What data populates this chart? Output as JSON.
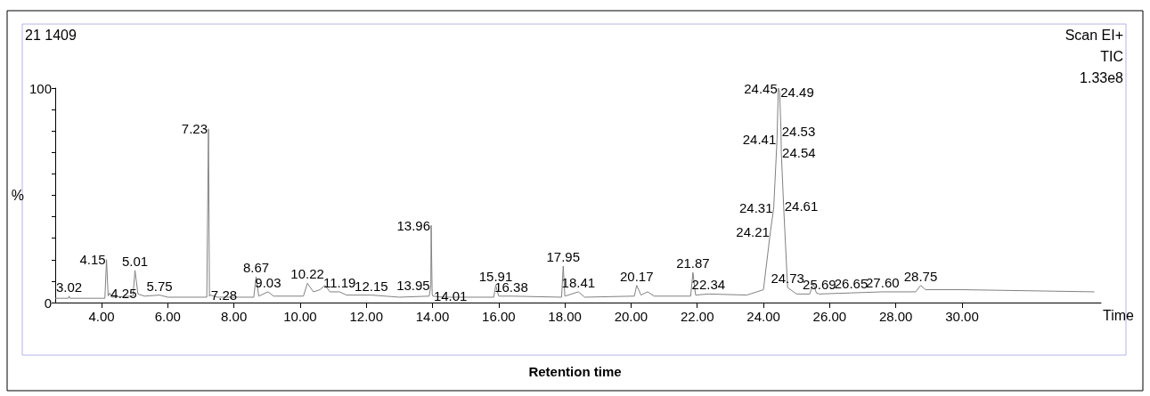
{
  "chart_data": {
    "type": "line",
    "xlabel": "Time",
    "ylabel": "%",
    "annotations": [
      "21 1409",
      "Scan EI+",
      "TIC",
      "1.33e8",
      "Retention time",
      {
        "text": "3.02",
        "x": 3.02,
        "y": 3
      },
      {
        "text": "4.15",
        "x": 4.15,
        "y": 20
      },
      {
        "text": "4.25",
        "x": 4.25,
        "y": 4.5
      },
      {
        "text": "5.01",
        "x": 5.01,
        "y": 15
      },
      {
        "text": "5.75",
        "x": 5.75,
        "y": 3.5
      },
      {
        "text": "7.23",
        "x": 7.23,
        "y": 81
      },
      {
        "text": "7.28",
        "x": 7.28,
        "y": 3.5
      },
      {
        "text": "8.67",
        "x": 8.67,
        "y": 12
      },
      {
        "text": "9.03",
        "x": 9.03,
        "y": 5
      },
      {
        "text": "10.22",
        "x": 10.22,
        "y": 9
      },
      {
        "text": "11.19",
        "x": 11.19,
        "y": 5
      },
      {
        "text": "12.15",
        "x": 12.15,
        "y": 3.5
      },
      {
        "text": "13.95",
        "x": 13.95,
        "y": 8
      },
      {
        "text": "13.96",
        "x": 13.96,
        "y": 36
      },
      {
        "text": "14.01",
        "x": 14.01,
        "y": 3
      },
      {
        "text": "15.91",
        "x": 15.91,
        "y": 8
      },
      {
        "text": "16.38",
        "x": 16.38,
        "y": 3
      },
      {
        "text": "17.95",
        "x": 17.95,
        "y": 17
      },
      {
        "text": "18.41",
        "x": 18.41,
        "y": 5
      },
      {
        "text": "20.17",
        "x": 20.17,
        "y": 8
      },
      {
        "text": "21.87",
        "x": 21.87,
        "y": 14
      },
      {
        "text": "22.34",
        "x": 22.34,
        "y": 4
      },
      {
        "text": "24.21",
        "x": 24.21,
        "y": 33
      },
      {
        "text": "24.31",
        "x": 24.31,
        "y": 44
      },
      {
        "text": "24.41",
        "x": 24.41,
        "y": 76
      },
      {
        "text": "24.45",
        "x": 24.45,
        "y": 100
      },
      {
        "text": "24.49",
        "x": 24.49,
        "y": 98
      },
      {
        "text": "24.53",
        "x": 24.53,
        "y": 80
      },
      {
        "text": "24.54",
        "x": 24.54,
        "y": 70
      },
      {
        "text": "24.61",
        "x": 24.61,
        "y": 45
      },
      {
        "text": "24.73",
        "x": 24.73,
        "y": 7
      },
      {
        "text": "25.69",
        "x": 25.69,
        "y": 4
      },
      {
        "text": "26.65",
        "x": 26.65,
        "y": 4.5
      },
      {
        "text": "27.60",
        "x": 27.6,
        "y": 5
      },
      {
        "text": "28.75",
        "x": 28.75,
        "y": 8
      }
    ],
    "x": [
      2.6,
      3.0,
      3.02,
      3.05,
      4.1,
      4.15,
      4.2,
      4.25,
      4.3,
      4.95,
      5.01,
      5.1,
      5.3,
      5.75,
      6.0,
      7.18,
      7.23,
      7.26,
      7.28,
      7.5,
      8.6,
      8.67,
      8.75,
      9.03,
      9.2,
      10.1,
      10.22,
      10.4,
      10.6,
      10.75,
      10.9,
      11.19,
      11.4,
      12.15,
      13.0,
      13.9,
      13.95,
      13.96,
      13.99,
      14.01,
      14.3,
      15.85,
      15.91,
      16.0,
      16.38,
      17.9,
      17.95,
      18.0,
      18.41,
      18.6,
      20.1,
      20.17,
      20.3,
      20.5,
      20.7,
      21.8,
      21.87,
      21.95,
      22.34,
      23.5,
      24.0,
      24.21,
      24.31,
      24.41,
      24.45,
      24.49,
      24.53,
      24.54,
      24.61,
      24.73,
      25.0,
      25.4,
      25.5,
      25.6,
      25.69,
      26.65,
      27.6,
      28.6,
      28.75,
      28.9,
      30.0,
      32.0,
      34.0
    ],
    "series": [
      {
        "color": "#808080",
        "values": [
          2,
          2,
          3,
          2,
          2,
          20,
          3,
          4.5,
          2.5,
          3,
          15,
          4,
          3,
          3.5,
          2.5,
          2.5,
          81,
          3,
          3.5,
          2.5,
          2.5,
          12,
          3,
          5,
          3,
          3,
          9,
          5,
          6,
          8,
          5,
          5,
          3.5,
          3.5,
          2.5,
          3,
          8,
          36,
          4,
          3,
          2.5,
          2.5,
          8,
          3,
          3,
          2.5,
          17,
          3,
          5,
          2.5,
          3,
          8,
          3.5,
          5,
          3,
          3,
          14,
          3.5,
          4,
          3.5,
          6,
          33,
          44,
          76,
          100,
          98,
          80,
          70,
          45,
          7,
          4,
          4,
          9,
          4.5,
          4,
          4.5,
          5,
          5,
          8,
          6,
          6,
          5.5,
          5
        ]
      }
    ],
    "xlim": [
      2.6,
      34.2
    ],
    "xticks": [
      {
        "value": 4,
        "label": "4.00"
      },
      {
        "value": 6,
        "label": "6.00"
      },
      {
        "value": 8,
        "label": "8.00"
      },
      {
        "value": 10,
        "label": "10.00"
      },
      {
        "value": 12,
        "label": "12.00"
      },
      {
        "value": 14,
        "label": "14.00"
      },
      {
        "value": 16,
        "label": "16.00"
      },
      {
        "value": 18,
        "label": "18.00"
      },
      {
        "value": 20,
        "label": "20.00"
      },
      {
        "value": 22,
        "label": "22.00"
      },
      {
        "value": 24,
        "label": "24.00"
      },
      {
        "value": 26,
        "label": "26.00"
      },
      {
        "value": 28,
        "label": "28.00"
      },
      {
        "value": 30,
        "label": "30.00"
      }
    ],
    "ylim": [
      0,
      100
    ],
    "yticks": [
      0,
      {
        "value": 10,
        "label": null
      },
      {
        "value": 20,
        "label": null
      },
      {
        "value": 30,
        "label": null
      },
      {
        "value": 40,
        "label": null
      },
      {
        "value": 50,
        "label": null
      },
      {
        "value": 60,
        "label": null
      },
      {
        "value": 70,
        "label": null
      },
      {
        "value": 80,
        "label": null
      },
      {
        "value": 90,
        "label": null
      },
      100
    ],
    "grid": false,
    "marker": "none",
    "line_style": "solid"
  }
}
